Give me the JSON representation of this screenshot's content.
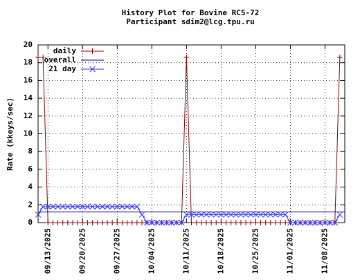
{
  "chart_data": {
    "type": "line",
    "title": "History Plot for Bovine RC5-72",
    "subtitle": "Participant sdim2@lcg.tpu.ru",
    "y_label": "Rate (kkeys/sec)",
    "x": [
      "2025-09-11",
      "2025-09-12",
      "2025-09-13",
      "2025-09-14",
      "2025-09-15",
      "2025-09-16",
      "2025-09-17",
      "2025-09-18",
      "2025-09-19",
      "2025-09-20",
      "2025-09-21",
      "2025-09-22",
      "2025-09-23",
      "2025-09-24",
      "2025-09-25",
      "2025-09-26",
      "2025-09-27",
      "2025-09-28",
      "2025-09-29",
      "2025-09-30",
      "2025-10-01",
      "2025-10-02",
      "2025-10-03",
      "2025-10-04",
      "2025-10-05",
      "2025-10-06",
      "2025-10-07",
      "2025-10-08",
      "2025-10-09",
      "2025-10-10",
      "2025-10-11",
      "2025-10-12",
      "2025-10-13",
      "2025-10-14",
      "2025-10-15",
      "2025-10-16",
      "2025-10-17",
      "2025-10-18",
      "2025-10-19",
      "2025-10-20",
      "2025-10-21",
      "2025-10-22",
      "2025-10-23",
      "2025-10-24",
      "2025-10-25",
      "2025-10-26",
      "2025-10-27",
      "2025-10-28",
      "2025-10-29",
      "2025-10-30",
      "2025-10-31",
      "2025-11-01",
      "2025-11-02",
      "2025-11-03",
      "2025-11-04",
      "2025-11-05",
      "2025-11-06",
      "2025-11-07",
      "2025-11-08",
      "2025-11-09",
      "2025-11-10",
      "2025-11-11"
    ],
    "series": [
      {
        "name": "daily",
        "color": "#8b0000",
        "marker": "plus",
        "values": [
          18.6,
          18.6,
          0,
          0,
          0,
          0,
          0,
          0,
          0,
          0,
          0,
          0,
          0,
          0,
          0,
          0,
          0,
          0,
          0,
          0,
          0,
          0,
          0,
          0,
          0,
          0,
          0,
          0,
          0,
          0,
          18.6,
          0,
          0,
          0,
          0,
          0,
          0,
          0,
          0,
          0,
          0,
          0,
          0,
          0,
          0,
          0,
          0,
          0,
          0,
          0,
          0,
          0,
          0,
          0,
          0,
          0,
          0,
          0,
          0,
          0,
          0,
          18.6
        ]
      },
      {
        "name": "overall",
        "color": "#000080",
        "value": 1.2
      },
      {
        "name": "21 day",
        "color": "#3333ff",
        "marker": "cross",
        "values": [
          0.9,
          1.8,
          1.8,
          1.8,
          1.8,
          1.8,
          1.8,
          1.8,
          1.8,
          1.8,
          1.8,
          1.8,
          1.8,
          1.8,
          1.8,
          1.8,
          1.8,
          1.8,
          1.8,
          1.8,
          1.8,
          0.9,
          0,
          0,
          0,
          0,
          0,
          0,
          0,
          0,
          0.9,
          0.9,
          0.9,
          0.9,
          0.9,
          0.9,
          0.9,
          0.9,
          0.9,
          0.9,
          0.9,
          0.9,
          0.9,
          0.9,
          0.9,
          0.9,
          0.9,
          0.9,
          0.9,
          0.9,
          0.9,
          0,
          0,
          0,
          0,
          0,
          0,
          0,
          0,
          0,
          0,
          0.9
        ]
      }
    ],
    "xlim": [
      "2025-09-11",
      "2025-11-12"
    ],
    "xticks": [
      {
        "value": "2025-09-13",
        "label": "09/13/2025"
      },
      {
        "value": "2025-09-20",
        "label": "09/20/2025"
      },
      {
        "value": "2025-09-27",
        "label": "09/27/2025"
      },
      {
        "value": "2025-10-04",
        "label": "10/04/2025"
      },
      {
        "value": "2025-10-11",
        "label": "10/11/2025"
      },
      {
        "value": "2025-10-18",
        "label": "10/18/2025"
      },
      {
        "value": "2025-10-25",
        "label": "10/25/2025"
      },
      {
        "value": "2025-11-01",
        "label": "11/01/2025"
      },
      {
        "value": "2025-11-08",
        "label": "11/08/2025"
      }
    ],
    "ylim": [
      0,
      20
    ],
    "yticks": [
      0,
      2,
      4,
      6,
      8,
      10,
      12,
      14,
      16,
      18,
      20
    ],
    "grid": true,
    "legend": "top-left"
  }
}
